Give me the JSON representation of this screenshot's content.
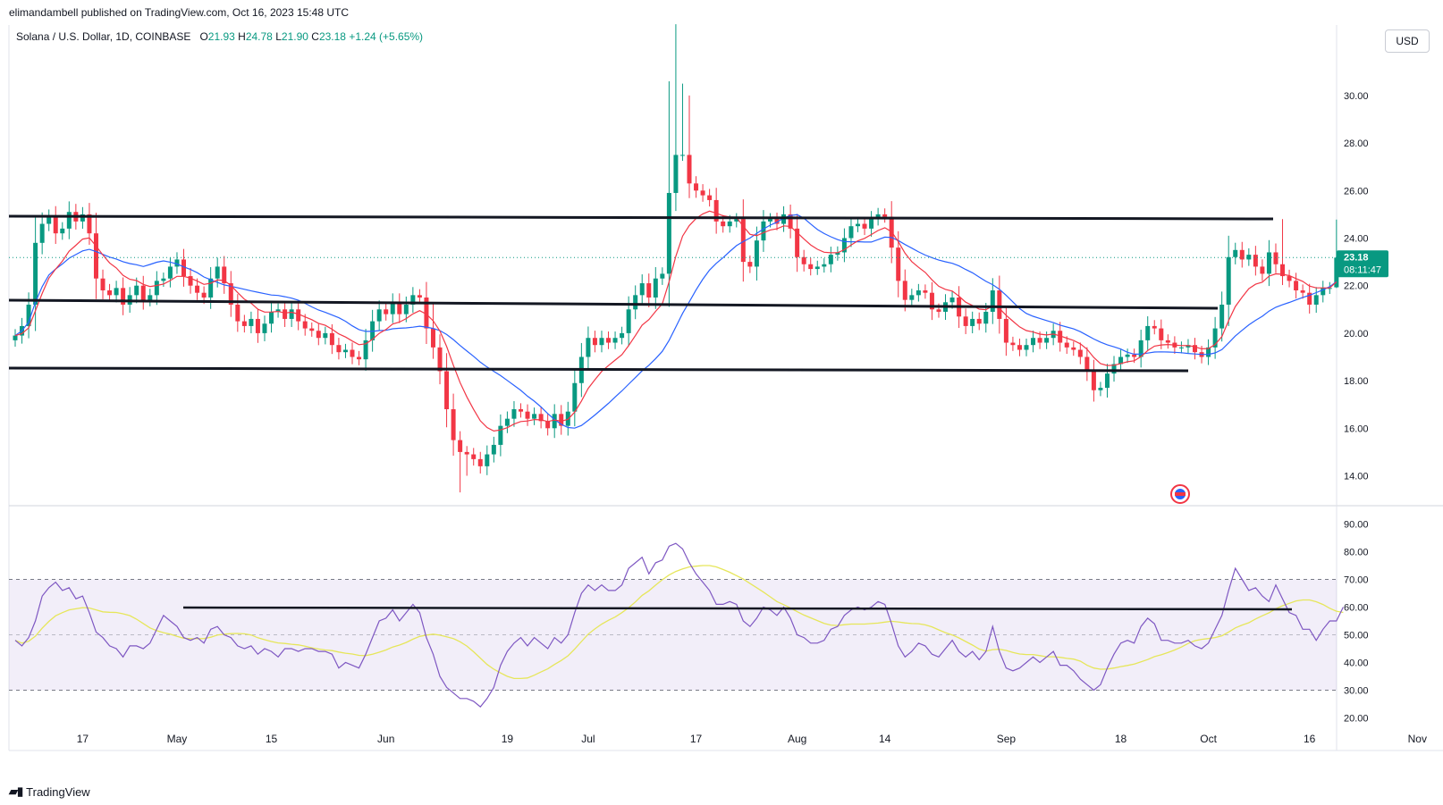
{
  "header": {
    "published": "elimandambell published on TradingView.com, Oct 16, 2023 15:48 UTC"
  },
  "legend": {
    "symbol": "Solana / U.S. Dollar, 1D, COINBASE",
    "o_label": "O",
    "o": "21.93",
    "h_label": "H",
    "h": "24.78",
    "l_label": "L",
    "l": "21.90",
    "c_label": "C",
    "c": "23.18",
    "change": "+1.24 (+5.65%)"
  },
  "currency_button": "USD",
  "price_tag": {
    "price": "23.18",
    "countdown": "08:11:47"
  },
  "footer": {
    "brand": "TradingView",
    "logo_icon": "tradingview-logo-icon"
  },
  "colors": {
    "up": "#089981",
    "down": "#f23645",
    "ma_fast": "#f23645",
    "ma_slow": "#2962ff",
    "rsi": "#7e57c2",
    "rsi_ma": "#e6e65a",
    "rsi_band": "#7e57c2",
    "trendline": "#131722"
  },
  "chart_data": [
    {
      "type": "candlestick",
      "title": "Solana / U.S. Dollar, 1D, COINBASE",
      "y_ticks": [
        "14.00",
        "16.00",
        "18.00",
        "20.00",
        "22.00",
        "24.00",
        "26.00",
        "28.00",
        "30.00"
      ],
      "ylim": [
        13.0,
        33.0
      ],
      "x_ticks": [
        {
          "label": "17",
          "date": "2023-04-17"
        },
        {
          "label": "May",
          "date": "2023-05-01"
        },
        {
          "label": "15",
          "date": "2023-05-15"
        },
        {
          "label": "Jun",
          "date": "2023-06-01"
        },
        {
          "label": "19",
          "date": "2023-06-19"
        },
        {
          "label": "Jul",
          "date": "2023-07-01"
        },
        {
          "label": "17",
          "date": "2023-07-17"
        },
        {
          "label": "Aug",
          "date": "2023-08-01"
        },
        {
          "label": "14",
          "date": "2023-08-14"
        },
        {
          "label": "Sep",
          "date": "2023-09-01"
        },
        {
          "label": "18",
          "date": "2023-09-18"
        },
        {
          "label": "Oct",
          "date": "2023-10-01"
        },
        {
          "label": "16",
          "date": "2023-10-16"
        },
        {
          "label": "Nov",
          "date": "2023-11-01"
        }
      ],
      "first_date": "2023-04-07",
      "close": [
        19.9,
        20.3,
        21.2,
        23.8,
        24.6,
        24.9,
        24.2,
        24.4,
        25.1,
        24.7,
        25.0,
        24.2,
        22.3,
        21.8,
        21.6,
        21.9,
        21.2,
        21.6,
        22.0,
        21.4,
        21.6,
        22.2,
        22.3,
        22.8,
        23.1,
        22.4,
        22.0,
        21.7,
        21.5,
        22.3,
        22.8,
        22.1,
        21.2,
        20.5,
        20.3,
        20.6,
        20.0,
        20.4,
        20.9,
        21.0,
        20.6,
        21.0,
        20.5,
        20.2,
        20.1,
        19.8,
        20.0,
        19.5,
        19.2,
        19.3,
        19.0,
        18.9,
        19.7,
        20.5,
        21.0,
        20.8,
        21.3,
        20.8,
        21.2,
        21.6,
        21.5,
        20.2,
        19.4,
        18.4,
        16.8,
        15.5,
        15.0,
        14.9,
        14.7,
        14.4,
        14.9,
        15.3,
        16.1,
        16.4,
        16.8,
        16.7,
        16.4,
        16.6,
        16.3,
        16.0,
        16.6,
        16.1,
        16.7,
        17.9,
        19.0,
        19.8,
        19.5,
        19.8,
        19.6,
        19.8,
        20.0,
        21.0,
        21.6,
        22.1,
        21.5,
        22.3,
        22.5,
        25.9,
        27.5,
        27.5,
        26.3,
        26.0,
        25.8,
        25.6,
        24.7,
        24.5,
        24.7,
        24.8,
        23.0,
        22.8,
        23.9,
        24.7,
        24.8,
        24.6,
        25.0,
        24.4,
        23.2,
        22.9,
        22.7,
        22.8,
        22.9,
        23.3,
        23.4,
        24.0,
        24.5,
        24.6,
        24.4,
        24.8,
        25.0,
        24.9,
        23.6,
        22.2,
        21.4,
        21.6,
        21.8,
        21.7,
        21.0,
        20.9,
        21.3,
        21.5,
        20.7,
        20.3,
        20.6,
        20.4,
        20.9,
        21.8,
        20.6,
        19.6,
        19.5,
        19.3,
        19.5,
        19.8,
        19.6,
        19.8,
        20.1,
        19.6,
        19.4,
        19.3,
        19.0,
        18.4,
        17.6,
        17.7,
        18.3,
        18.7,
        19.0,
        19.1,
        19.0,
        19.7,
        20.3,
        20.2,
        19.7,
        19.6,
        19.4,
        19.4,
        19.5,
        19.2,
        19.0,
        19.4,
        20.2,
        21.2,
        23.2,
        23.5,
        23.1,
        23.3,
        22.8,
        22.5,
        23.4,
        22.9,
        22.4,
        22.2,
        21.8,
        21.7,
        21.2,
        21.6,
        21.9,
        21.9,
        23.18
      ]
    },
    {
      "type": "line",
      "name": "RSI",
      "y_ticks": [
        "20.00",
        "30.00",
        "40.00",
        "50.00",
        "60.00",
        "70.00",
        "80.00",
        "90.00"
      ],
      "ylim": [
        16.0,
        94.0
      ],
      "band": [
        30,
        70
      ],
      "midline": 50,
      "first_date": "2023-04-07",
      "values": [
        48,
        46,
        49,
        55,
        64,
        67,
        69,
        66,
        67,
        63,
        64,
        58,
        51,
        49,
        46,
        45,
        42,
        46,
        46,
        45,
        47,
        52,
        57,
        55,
        53,
        49,
        48,
        49,
        47,
        52,
        53,
        50,
        49,
        46,
        45,
        46,
        43,
        45,
        44,
        42,
        45,
        45,
        44,
        45,
        45,
        44,
        44,
        43,
        38,
        40,
        39,
        38,
        43,
        49,
        55,
        56,
        59,
        55,
        58,
        61,
        58,
        49,
        43,
        35,
        31,
        29,
        27,
        27,
        26,
        24,
        27,
        31,
        39,
        44,
        47,
        49,
        46,
        49,
        47,
        45,
        49,
        47,
        50,
        58,
        65,
        68,
        66,
        68,
        66,
        66,
        68,
        74,
        76,
        78,
        72,
        76,
        77,
        82,
        83,
        81,
        76,
        72,
        69,
        66,
        61,
        61,
        62,
        61,
        55,
        53,
        56,
        60,
        59,
        57,
        60,
        56,
        50,
        49,
        47,
        47,
        48,
        52,
        53,
        57,
        59,
        60,
        59,
        60,
        62,
        61,
        54,
        46,
        42,
        44,
        47,
        46,
        43,
        42,
        45,
        48,
        44,
        42,
        44,
        41,
        44,
        53,
        44,
        38,
        37,
        38,
        40,
        42,
        40,
        42,
        44,
        39,
        39,
        37,
        34,
        32,
        30,
        32,
        38,
        43,
        47,
        48,
        47,
        53,
        56,
        54,
        48,
        48,
        47,
        47,
        48,
        46,
        45,
        47,
        52,
        57,
        66,
        74,
        70,
        66,
        67,
        64,
        62,
        68,
        63,
        58,
        57,
        52,
        52,
        48,
        52,
        55,
        55,
        60
      ]
    }
  ]
}
